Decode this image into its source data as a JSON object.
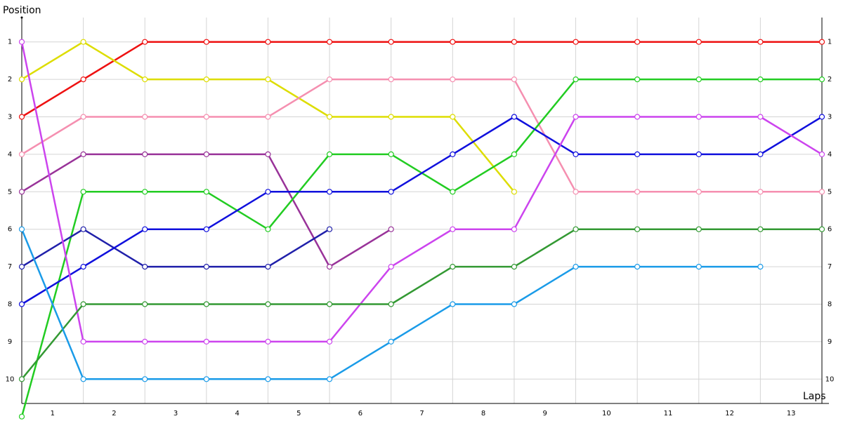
{
  "chart_data": {
    "type": "line",
    "title": "",
    "y_label": "Position",
    "x_label": "Laps",
    "x": [
      0,
      1,
      2,
      3,
      4,
      5,
      6,
      7,
      8,
      9,
      10,
      11,
      12,
      13
    ],
    "xlim": [
      0,
      13
    ],
    "xticks": [
      1,
      2,
      3,
      4,
      5,
      6,
      7,
      8,
      9,
      10,
      11,
      12,
      13
    ],
    "ylim": [
      0.35,
      10.65
    ],
    "yticks": [
      1,
      2,
      3,
      4,
      5,
      6,
      7,
      8,
      9,
      10
    ],
    "y_inverted": true,
    "grid": true,
    "series": [
      {
        "color": "#ee1111",
        "values": [
          3,
          2,
          1,
          1,
          1,
          1,
          1,
          1,
          1,
          1,
          1,
          1,
          1,
          1
        ]
      },
      {
        "color": "#dddd00",
        "values": [
          2,
          1,
          2,
          2,
          2,
          3,
          3,
          3,
          5,
          null,
          null,
          null,
          null,
          null
        ]
      },
      {
        "color": "#f58fb0",
        "values": [
          4,
          3,
          3,
          3,
          3,
          2,
          2,
          2,
          2,
          5,
          5,
          5,
          5,
          5
        ]
      },
      {
        "color": "#993399",
        "values": [
          5,
          4,
          4,
          4,
          4,
          7,
          6,
          null,
          null,
          null,
          null,
          null,
          null,
          null
        ]
      },
      {
        "color": "#22cc22",
        "values": [
          11,
          5,
          5,
          5,
          6,
          4,
          4,
          5,
          4,
          2,
          2,
          2,
          2,
          2
        ]
      },
      {
        "color": "#2020aa",
        "values": [
          7,
          6,
          7,
          7,
          7,
          6,
          null,
          null,
          null,
          null,
          null,
          null,
          null,
          null
        ]
      },
      {
        "color": "#1010dd",
        "values": [
          8,
          7,
          6,
          6,
          5,
          5,
          5,
          4,
          3,
          4,
          4,
          4,
          4,
          3
        ]
      },
      {
        "color": "#cc44ee",
        "values": [
          1,
          9,
          9,
          9,
          9,
          9,
          7,
          6,
          6,
          3,
          3,
          3,
          3,
          4
        ]
      },
      {
        "color": "#339933",
        "values": [
          10,
          8,
          8,
          8,
          8,
          8,
          8,
          7,
          7,
          6,
          6,
          6,
          6,
          6
        ]
      },
      {
        "color": "#1a9be8",
        "values": [
          6,
          10,
          10,
          10,
          10,
          10,
          9,
          8,
          8,
          7,
          7,
          7,
          7,
          null
        ]
      }
    ]
  }
}
